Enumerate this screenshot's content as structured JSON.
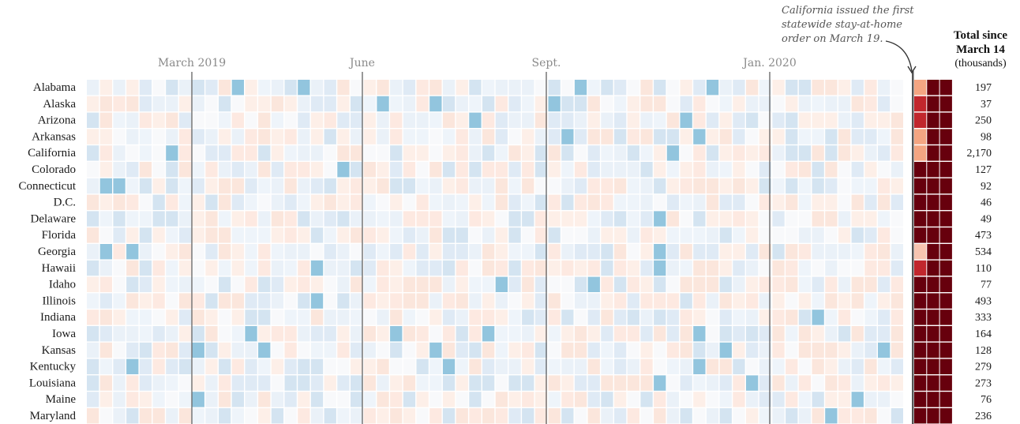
{
  "annotation": {
    "lines": [
      "California issued the first",
      "statewide stay-at-home",
      "order on March 19."
    ]
  },
  "total_header": {
    "line1": "Total since",
    "line2": "March 14",
    "line3": "(thousands)"
  },
  "colors": {
    "strong_red": "#c1272d",
    "dark_red": "#67000d",
    "mid_red": "#f4a582",
    "light_blue": "#d1e5f0",
    "mid_blue": "#92c5de",
    "divider": "#555555"
  },
  "chart_data": {
    "type": "heatmap",
    "x_axis_labels": [
      "March 2019",
      "June",
      "Sept.",
      "Jan. 2020"
    ],
    "rows": [
      "Alabama",
      "Alaska",
      "Arizona",
      "Arkansas",
      "California",
      "Colorado",
      "Connecticut",
      "D.C.",
      "Delaware",
      "Florida",
      "Georgia",
      "Hawaii",
      "Idaho",
      "Illinois",
      "Indiana",
      "Iowa",
      "Kansas",
      "Kentucky",
      "Louisiana",
      "Maine",
      "Maryland"
    ],
    "totals": [
      "197",
      "37",
      "250",
      "98",
      "2,170",
      "127",
      "92",
      "46",
      "49",
      "473",
      "534",
      "110",
      "77",
      "493",
      "333",
      "164",
      "128",
      "279",
      "273",
      "76",
      "236"
    ],
    "legend": "none",
    "grid": false
  }
}
